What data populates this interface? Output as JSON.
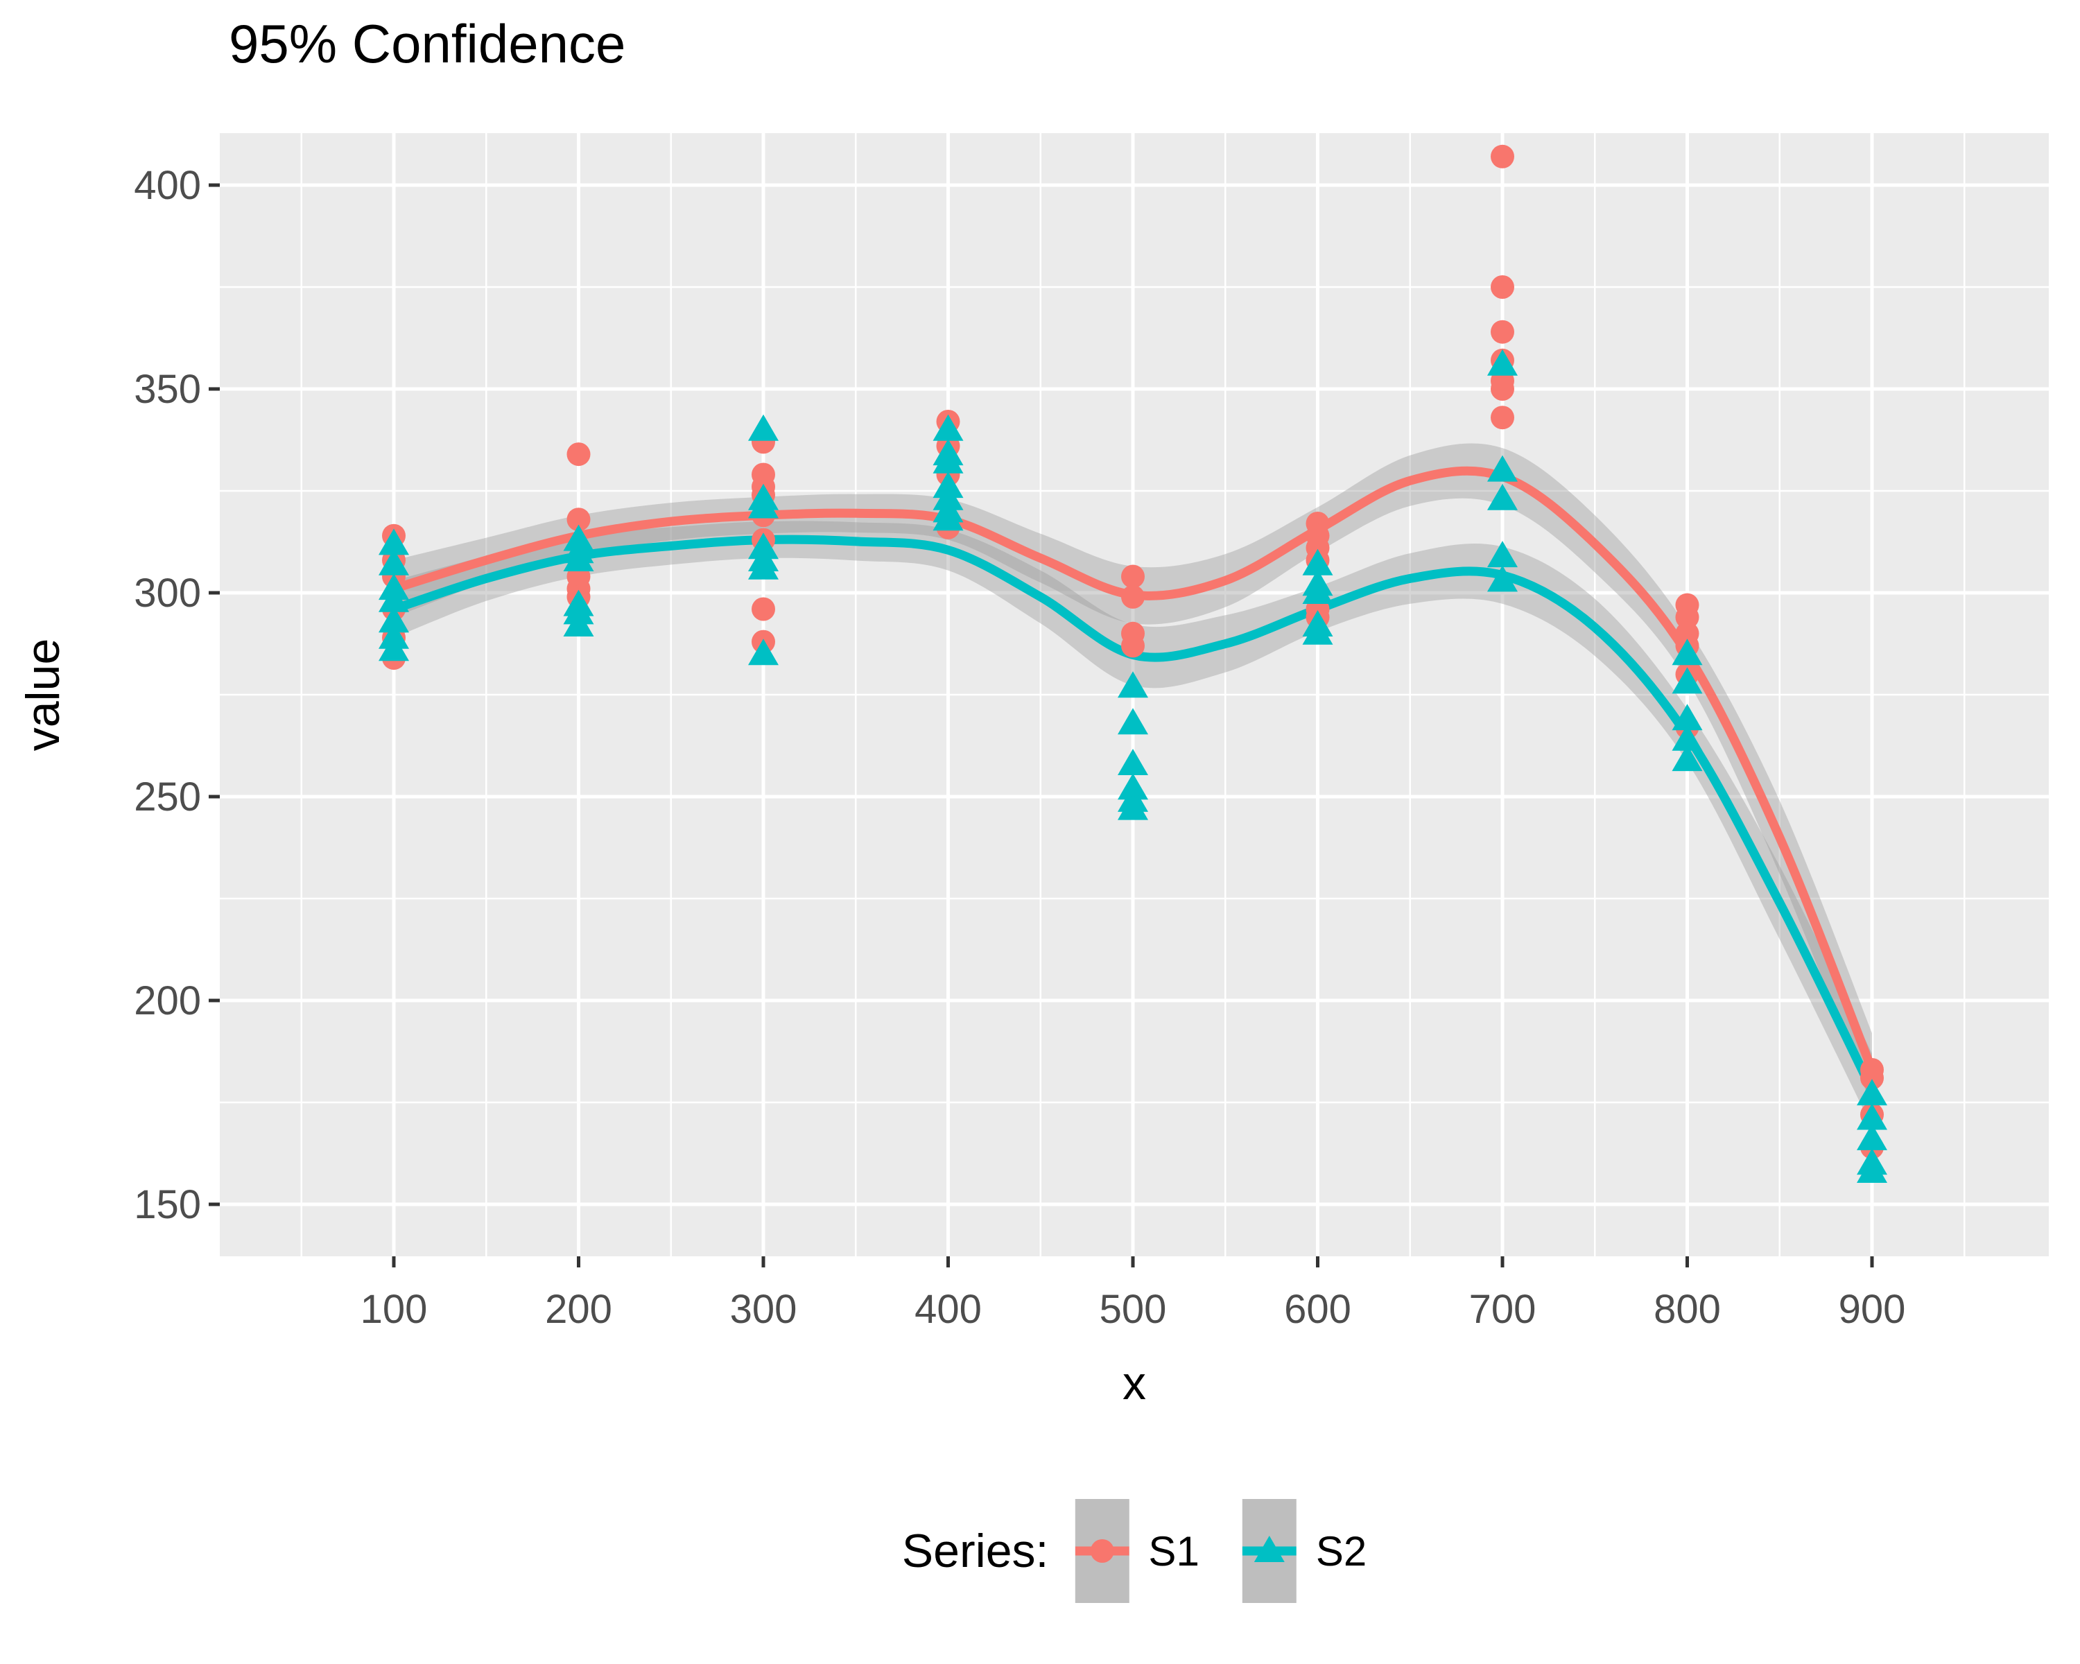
{
  "title": "95% Confidence",
  "chart_data": {
    "type": "scatter",
    "title": "95% Confidence",
    "xlabel": "x",
    "ylabel": "value",
    "xlim": [
      6,
      996
    ],
    "ylim": [
      137.5,
      412.5
    ],
    "x_ticks": [
      100,
      200,
      300,
      400,
      500,
      600,
      700,
      800,
      900
    ],
    "y_ticks": [
      150,
      200,
      250,
      300,
      350,
      400
    ],
    "x_minor": [
      50,
      150,
      250,
      350,
      450,
      550,
      650,
      750,
      850,
      950
    ],
    "y_minor": [
      175,
      225,
      275,
      325,
      375
    ],
    "grid": "white major+minor gridlines on gray panel",
    "legend": {
      "title": "Series:",
      "position": "bottom",
      "entries": [
        {
          "label": "S1",
          "marker": "circle",
          "color": "#F8766D"
        },
        {
          "label": "S2",
          "marker": "triangle",
          "color": "#00BFC4"
        }
      ]
    },
    "colors": {
      "panel_bg": "#EBEBEB",
      "grid": "#FFFFFF",
      "tick_text": "#4D4D4D",
      "tick_mark": "#333333",
      "band": "#999999",
      "band_alpha": 0.4,
      "legend_key_bg": "#BEBEBE",
      "s1": "#F8766D",
      "s2": "#00BFC4"
    },
    "series": [
      {
        "name": "S1",
        "marker": "circle",
        "color": "#F8766D",
        "points": [
          [
            100,
            314
          ],
          [
            100,
            308
          ],
          [
            100,
            304
          ],
          [
            100,
            296
          ],
          [
            100,
            289
          ],
          [
            100,
            284
          ],
          [
            200,
            334
          ],
          [
            200,
            318
          ],
          [
            200,
            304
          ],
          [
            200,
            301
          ],
          [
            200,
            299
          ],
          [
            300,
            337
          ],
          [
            300,
            329
          ],
          [
            300,
            326
          ],
          [
            300,
            324
          ],
          [
            300,
            319
          ],
          [
            300,
            313
          ],
          [
            300,
            296
          ],
          [
            300,
            288
          ],
          [
            400,
            342
          ],
          [
            400,
            336
          ],
          [
            400,
            329
          ],
          [
            400,
            316
          ],
          [
            500,
            304
          ],
          [
            500,
            299
          ],
          [
            500,
            290
          ],
          [
            500,
            287
          ],
          [
            600,
            317
          ],
          [
            600,
            314
          ],
          [
            600,
            311
          ],
          [
            600,
            308
          ],
          [
            600,
            296
          ],
          [
            600,
            294
          ],
          [
            700,
            407
          ],
          [
            700,
            375
          ],
          [
            700,
            364
          ],
          [
            700,
            357
          ],
          [
            700,
            352
          ],
          [
            700,
            350
          ],
          [
            700,
            343
          ],
          [
            800,
            297
          ],
          [
            800,
            294
          ],
          [
            800,
            290
          ],
          [
            800,
            287
          ],
          [
            800,
            280
          ],
          [
            800,
            267
          ],
          [
            900,
            183
          ],
          [
            900,
            181
          ],
          [
            900,
            172
          ],
          [
            900,
            164
          ]
        ]
      },
      {
        "name": "S2",
        "marker": "triangle",
        "color": "#00BFC4",
        "points": [
          [
            100,
            312
          ],
          [
            100,
            307
          ],
          [
            100,
            301
          ],
          [
            100,
            298
          ],
          [
            100,
            293
          ],
          [
            100,
            289
          ],
          [
            100,
            286
          ],
          [
            200,
            313
          ],
          [
            200,
            310
          ],
          [
            200,
            308
          ],
          [
            200,
            297
          ],
          [
            200,
            295
          ],
          [
            200,
            292
          ],
          [
            300,
            340
          ],
          [
            300,
            323
          ],
          [
            300,
            321
          ],
          [
            300,
            311
          ],
          [
            300,
            308
          ],
          [
            300,
            306
          ],
          [
            300,
            285
          ],
          [
            400,
            340
          ],
          [
            400,
            334
          ],
          [
            400,
            332
          ],
          [
            400,
            326
          ],
          [
            400,
            323
          ],
          [
            400,
            320
          ],
          [
            400,
            318
          ],
          [
            500,
            277
          ],
          [
            500,
            268
          ],
          [
            500,
            258
          ],
          [
            500,
            252
          ],
          [
            500,
            249
          ],
          [
            500,
            247
          ],
          [
            600,
            307
          ],
          [
            600,
            302
          ],
          [
            600,
            300
          ],
          [
            600,
            292
          ],
          [
            600,
            290
          ],
          [
            700,
            356
          ],
          [
            700,
            330
          ],
          [
            700,
            323
          ],
          [
            700,
            309
          ],
          [
            700,
            303
          ],
          [
            800,
            285
          ],
          [
            800,
            278
          ],
          [
            800,
            269
          ],
          [
            800,
            264
          ],
          [
            800,
            259
          ],
          [
            900,
            177
          ],
          [
            900,
            171
          ],
          [
            900,
            166
          ],
          [
            900,
            160
          ],
          [
            900,
            158
          ]
        ]
      }
    ],
    "smooth": {
      "ci_level": "95%",
      "x": [
        100,
        150,
        200,
        250,
        300,
        350,
        400,
        450,
        500,
        550,
        600,
        650,
        700,
        750,
        800,
        850,
        900
      ],
      "s1_line": [
        301,
        308,
        314,
        317.5,
        319,
        319.5,
        318,
        308.5,
        299.5,
        303,
        315.5,
        327.5,
        328.5,
        312,
        285,
        240,
        183
      ],
      "s1_halfwidth": [
        7,
        5.5,
        5,
        4.6,
        4.5,
        4.7,
        5,
        6,
        7,
        6.5,
        5.5,
        6.2,
        7,
        7,
        6.5,
        9,
        9
      ],
      "s2_line": [
        296,
        303.5,
        309,
        311.5,
        313,
        312.6,
        310.5,
        299,
        284.8,
        287.5,
        296,
        303.5,
        304.3,
        291.5,
        265,
        224,
        178
      ],
      "s2_halfwidth": [
        7,
        5.5,
        5,
        4.6,
        4.5,
        4.7,
        5,
        6.5,
        7.5,
        7,
        5.5,
        6.2,
        7,
        7,
        6.5,
        9,
        9
      ]
    }
  }
}
